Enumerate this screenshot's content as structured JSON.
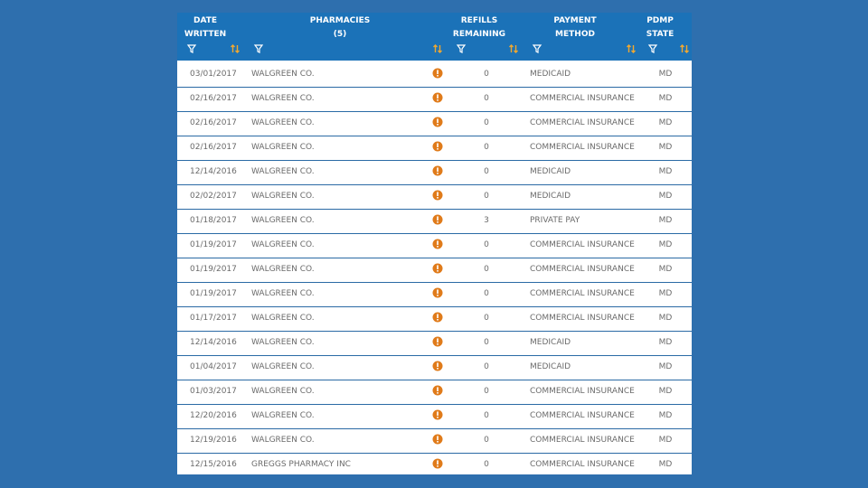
{
  "table": {
    "columns": [
      [
        "DATE",
        "WRITTEN"
      ],
      [
        "PHARMACIES",
        "(5)"
      ],
      [
        "REFILLS",
        "REMAINING"
      ],
      [
        "PAYMENT",
        "METHOD"
      ],
      [
        "PDMP",
        "STATE"
      ]
    ],
    "rows": [
      [
        "03/01/2017",
        "WALGREEN CO.",
        0,
        "MEDICAID",
        "MD"
      ],
      [
        "02/16/2017",
        "WALGREEN CO.",
        0,
        "COMMERCIAL INSURANCE",
        "MD"
      ],
      [
        "02/16/2017",
        "WALGREEN CO.",
        0,
        "COMMERCIAL INSURANCE",
        "MD"
      ],
      [
        "02/16/2017",
        "WALGREEN CO.",
        0,
        "COMMERCIAL INSURANCE",
        "MD"
      ],
      [
        "12/14/2016",
        "WALGREEN CO.",
        0,
        "MEDICAID",
        "MD"
      ],
      [
        "02/02/2017",
        "WALGREEN CO.",
        0,
        "MEDICAID",
        "MD"
      ],
      [
        "01/18/2017",
        "WALGREEN CO.",
        3,
        "PRIVATE PAY",
        "MD"
      ],
      [
        "01/19/2017",
        "WALGREEN CO.",
        0,
        "COMMERCIAL INSURANCE",
        "MD"
      ],
      [
        "01/19/2017",
        "WALGREEN CO.",
        0,
        "COMMERCIAL INSURANCE",
        "MD"
      ],
      [
        "01/19/2017",
        "WALGREEN CO.",
        0,
        "COMMERCIAL INSURANCE",
        "MD"
      ],
      [
        "01/17/2017",
        "WALGREEN CO.",
        0,
        "COMMERCIAL INSURANCE",
        "MD"
      ],
      [
        "12/14/2016",
        "WALGREEN CO.",
        0,
        "MEDICAID",
        "MD"
      ],
      [
        "01/04/2017",
        "WALGREEN CO.",
        0,
        "MEDICAID",
        "MD"
      ],
      [
        "01/03/2017",
        "WALGREEN CO.",
        0,
        "COMMERCIAL INSURANCE",
        "MD"
      ],
      [
        "12/20/2016",
        "WALGREEN CO.",
        0,
        "COMMERCIAL INSURANCE",
        "MD"
      ],
      [
        "12/19/2016",
        "WALGREEN CO.",
        0,
        "COMMERCIAL INSURANCE",
        "MD"
      ],
      [
        "12/15/2016",
        "GREGGS PHARMACY INC",
        0,
        "COMMERCIAL INSURANCE",
        "MD"
      ]
    ]
  }
}
